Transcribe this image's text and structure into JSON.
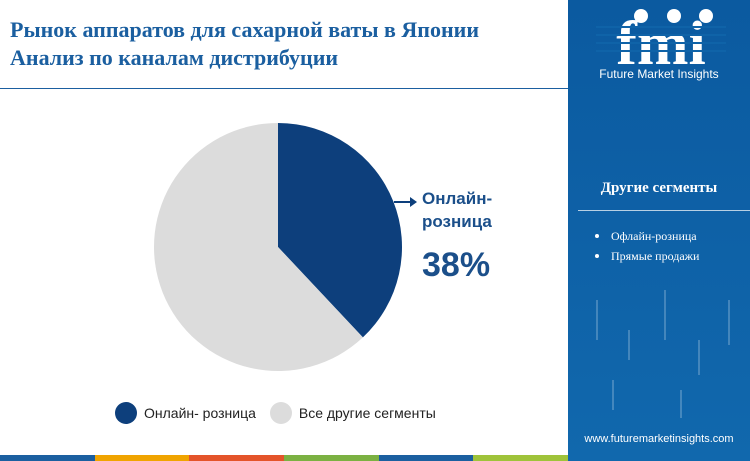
{
  "title": {
    "line1": "Рынок аппаратов для сахарной ваты в Японии",
    "line2": "Анализ по каналам дистрибуции"
  },
  "chart_data": {
    "type": "pie",
    "slices": [
      {
        "label": "Онлайн- розница",
        "value": 38,
        "color": "#0d3f7c"
      },
      {
        "label": "Все другие сегменты",
        "value": 62,
        "color": "#dcdcdc"
      }
    ],
    "callout": {
      "line1": "Онлайн-",
      "line2": "розница",
      "value_text": "38%"
    },
    "legend": [
      "Онлайн- розница",
      "Все другие сегменты"
    ]
  },
  "sidebar": {
    "logo_text": "fmi",
    "logo_subtitle": "Future Market Insights",
    "segments_title": "Другие сегменты",
    "segments": [
      "Офлайн-розница",
      "Прямые продажи"
    ],
    "website": "www.futuremarketinsights.com"
  },
  "colors": {
    "primary": "#1b5fa0",
    "sidebar_bg": "#0f63a8",
    "bottom_bar": [
      "#1b5fa0",
      "#f0a400",
      "#e4542a",
      "#7bb142",
      "#1b5fa0",
      "#9fc33a"
    ]
  }
}
